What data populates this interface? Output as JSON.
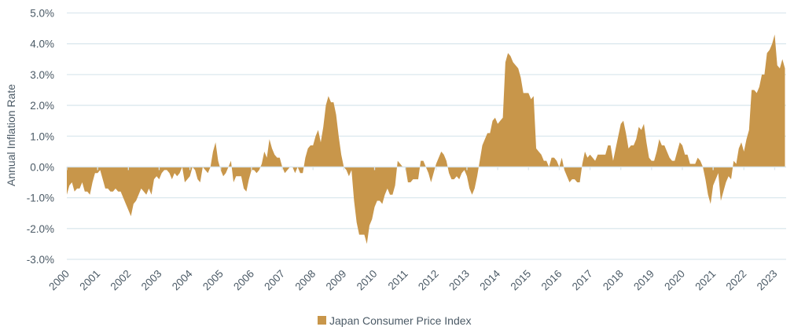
{
  "chart_data": {
    "type": "area",
    "title": "",
    "xlabel": "",
    "ylabel": "Annual Inflation Rate",
    "ylim": [
      -3.0,
      5.0
    ],
    "yticks": [
      "-3.0%",
      "-2.0%",
      "-1.0%",
      "0.0%",
      "1.0%",
      "2.0%",
      "3.0%",
      "4.0%",
      "5.0%"
    ],
    "ytick_values": [
      -3,
      -2,
      -1,
      0,
      1,
      2,
      3,
      4,
      5
    ],
    "xticks": [
      "2000",
      "2001",
      "2002",
      "2003",
      "2004",
      "2005",
      "2006",
      "2007",
      "2008",
      "2009",
      "2010",
      "2011",
      "2012",
      "2013",
      "2014",
      "2015",
      "2016",
      "2017",
      "2018",
      "2019",
      "2020",
      "2021",
      "2022",
      "2023"
    ],
    "x_start": "2000-01",
    "x_frequency": "monthly",
    "grid": true,
    "legend_position": "bottom-center",
    "series": [
      {
        "name": "Japan Consumer Price Index",
        "color": "#C8964A",
        "values": [
          -0.9,
          -0.6,
          -0.5,
          -0.8,
          -0.7,
          -0.7,
          -0.5,
          -0.8,
          -0.8,
          -0.9,
          -0.5,
          -0.2,
          -0.2,
          -0.1,
          -0.4,
          -0.7,
          -0.7,
          -0.8,
          -0.8,
          -0.7,
          -0.8,
          -0.8,
          -1.0,
          -1.2,
          -1.4,
          -1.6,
          -1.2,
          -1.1,
          -0.9,
          -0.7,
          -0.8,
          -0.9,
          -0.7,
          -0.9,
          -0.4,
          -0.3,
          -0.4,
          -0.2,
          -0.1,
          -0.1,
          -0.2,
          -0.4,
          -0.2,
          -0.3,
          -0.2,
          0.0,
          -0.5,
          -0.4,
          -0.3,
          0.0,
          -0.1,
          -0.4,
          -0.5,
          0.0,
          -0.1,
          -0.2,
          0.0,
          0.5,
          0.8,
          0.2,
          -0.1,
          -0.3,
          -0.2,
          0.0,
          0.2,
          -0.5,
          -0.3,
          -0.3,
          -0.3,
          -0.7,
          -0.8,
          -0.4,
          -0.1,
          -0.1,
          -0.2,
          -0.1,
          0.1,
          0.5,
          0.3,
          0.9,
          0.6,
          0.4,
          0.3,
          0.3,
          0.0,
          -0.2,
          -0.1,
          0.0,
          0.0,
          -0.2,
          0.0,
          -0.2,
          -0.2,
          0.3,
          0.6,
          0.7,
          0.7,
          1.0,
          1.2,
          0.8,
          1.3,
          2.0,
          2.3,
          2.1,
          2.1,
          1.7,
          1.0,
          0.4,
          0.0,
          -0.1,
          -0.3,
          -0.1,
          -1.1,
          -1.8,
          -2.2,
          -2.2,
          -2.2,
          -2.5,
          -1.9,
          -1.7,
          -1.3,
          -1.1,
          -1.1,
          -1.2,
          -0.9,
          -0.7,
          -0.9,
          -0.9,
          -0.6,
          0.2,
          0.1,
          0.0,
          0.0,
          -0.5,
          -0.5,
          -0.4,
          -0.4,
          -0.4,
          0.2,
          0.2,
          0.0,
          -0.2,
          -0.5,
          -0.2,
          0.1,
          0.3,
          0.5,
          0.4,
          0.2,
          -0.2,
          -0.4,
          -0.4,
          -0.3,
          -0.4,
          -0.2,
          -0.1,
          -0.3,
          -0.7,
          -0.9,
          -0.7,
          -0.3,
          0.2,
          0.7,
          0.9,
          1.1,
          1.1,
          1.5,
          1.6,
          1.4,
          1.5,
          1.6,
          3.4,
          3.7,
          3.6,
          3.4,
          3.3,
          3.2,
          2.9,
          2.4,
          2.4,
          2.4,
          2.2,
          2.3,
          0.6,
          0.5,
          0.4,
          0.2,
          0.2,
          0.0,
          0.3,
          0.3,
          0.2,
          0.0,
          0.3,
          -0.1,
          -0.3,
          -0.5,
          -0.4,
          -0.4,
          -0.5,
          -0.5,
          0.1,
          0.5,
          0.3,
          0.4,
          0.3,
          0.2,
          0.4,
          0.4,
          0.4,
          0.4,
          0.7,
          0.7,
          0.2,
          0.6,
          1.0,
          1.4,
          1.5,
          1.1,
          0.6,
          0.7,
          0.7,
          0.9,
          1.3,
          1.2,
          1.4,
          0.8,
          0.3,
          0.2,
          0.2,
          0.5,
          0.9,
          0.7,
          0.7,
          0.5,
          0.3,
          0.2,
          0.2,
          0.5,
          0.8,
          0.7,
          0.4,
          0.4,
          0.1,
          0.1,
          0.1,
          0.3,
          0.2,
          0.0,
          -0.4,
          -0.9,
          -1.2,
          -0.6,
          -0.4,
          -0.2,
          -1.1,
          -0.8,
          -0.5,
          -0.3,
          -0.4,
          0.2,
          0.1,
          0.6,
          0.8,
          0.5,
          0.9,
          1.2,
          2.5,
          2.5,
          2.4,
          2.6,
          3.0,
          3.0,
          3.7,
          3.8,
          4.0,
          4.3,
          3.3,
          3.2,
          3.5,
          3.2
        ]
      }
    ]
  }
}
